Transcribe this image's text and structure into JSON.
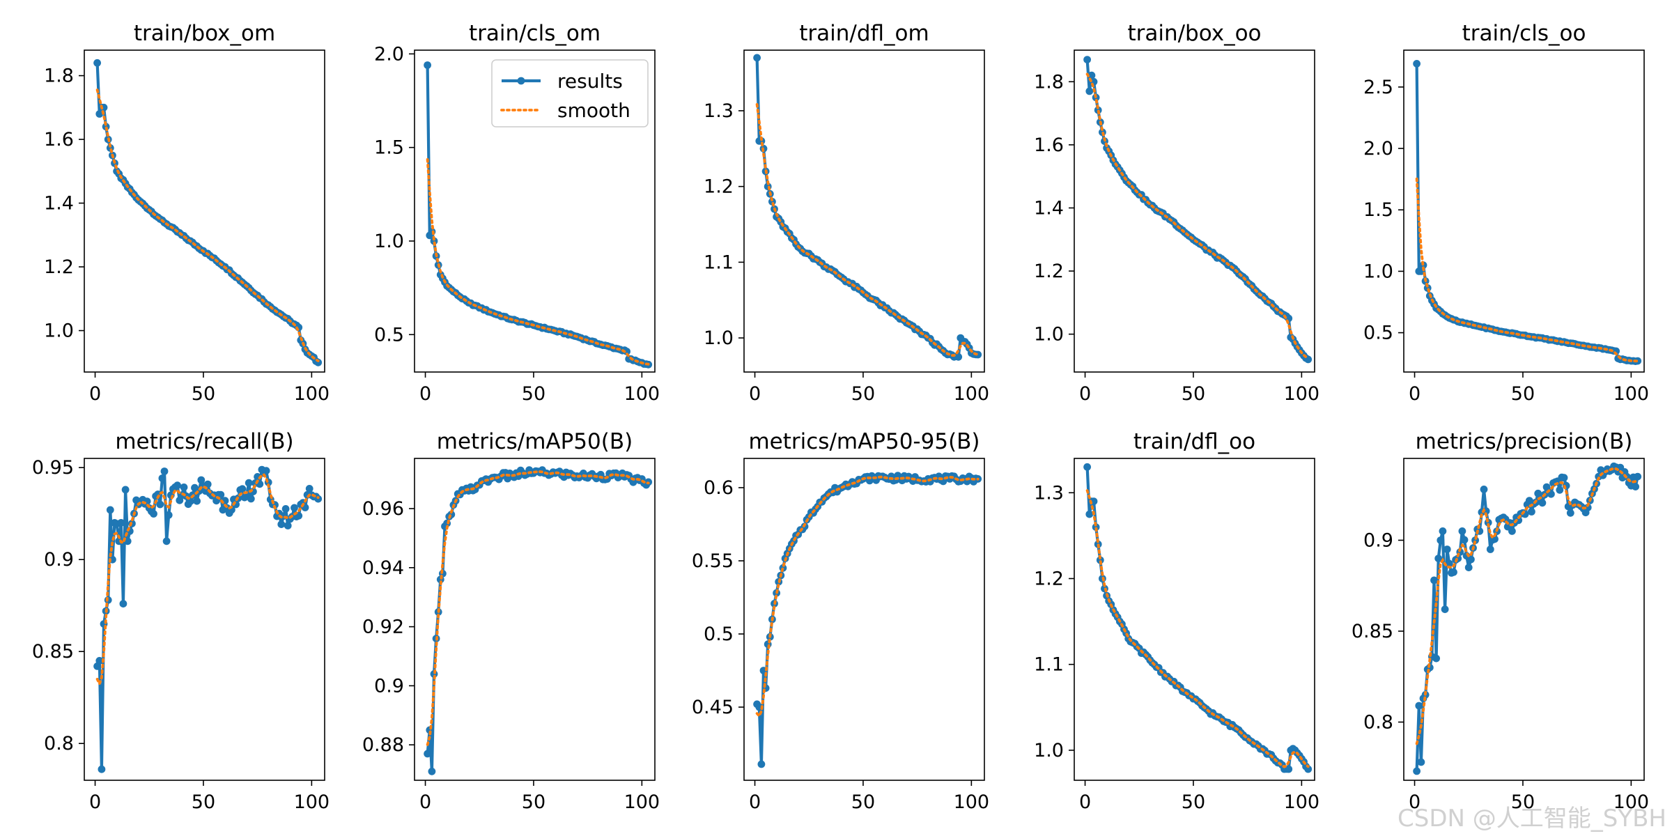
{
  "watermark": "CSDN @人工智能_SYBH",
  "legend": {
    "results_label": "results",
    "smooth_label": "smooth"
  },
  "colors": {
    "results": "#1f77b4",
    "smooth": "#ff7f0e",
    "axes": "#000000"
  },
  "chart_data": [
    {
      "type": "line",
      "title": "train/box_om",
      "legend": "none",
      "xlim": [
        -5,
        106
      ],
      "ylim": [
        0.87,
        1.88
      ],
      "xticks": [
        0,
        50,
        100
      ],
      "yticks": [
        1.0,
        1.2,
        1.4,
        1.6,
        1.8
      ],
      "x_range": [
        1,
        103
      ],
      "anchors": [
        [
          1,
          1.84
        ],
        [
          2,
          1.68
        ],
        [
          3,
          1.7
        ],
        [
          4,
          1.7
        ],
        [
          5,
          1.64
        ],
        [
          6,
          1.6
        ],
        [
          8,
          1.55
        ],
        [
          10,
          1.5
        ],
        [
          15,
          1.45
        ],
        [
          20,
          1.41
        ],
        [
          30,
          1.35
        ],
        [
          40,
          1.3
        ],
        [
          50,
          1.25
        ],
        [
          60,
          1.2
        ],
        [
          70,
          1.14
        ],
        [
          80,
          1.08
        ],
        [
          90,
          1.03
        ],
        [
          94,
          1.01
        ],
        [
          95,
          0.97
        ],
        [
          98,
          0.93
        ],
        [
          100,
          0.92
        ],
        [
          103,
          0.9
        ]
      ],
      "noise": 0.003
    },
    {
      "type": "line",
      "title": "train/cls_om",
      "legend": "upper right",
      "xlim": [
        -5,
        106
      ],
      "ylim": [
        0.3,
        2.02
      ],
      "xticks": [
        0,
        50,
        100
      ],
      "yticks": [
        0.5,
        1.0,
        1.5,
        2.0
      ],
      "x_range": [
        1,
        103
      ],
      "anchors": [
        [
          1,
          1.94
        ],
        [
          2,
          1.03
        ],
        [
          3,
          1.05
        ],
        [
          4,
          1.0
        ],
        [
          5,
          0.92
        ],
        [
          7,
          0.82
        ],
        [
          10,
          0.76
        ],
        [
          15,
          0.71
        ],
        [
          20,
          0.67
        ],
        [
          30,
          0.62
        ],
        [
          40,
          0.58
        ],
        [
          50,
          0.55
        ],
        [
          60,
          0.52
        ],
        [
          70,
          0.49
        ],
        [
          80,
          0.45
        ],
        [
          90,
          0.42
        ],
        [
          93,
          0.41
        ],
        [
          94,
          0.37
        ],
        [
          100,
          0.35
        ],
        [
          103,
          0.34
        ]
      ],
      "noise": 0.004
    },
    {
      "type": "line",
      "title": "train/dfl_om",
      "legend": "none",
      "xlim": [
        -5,
        106
      ],
      "ylim": [
        0.955,
        1.38
      ],
      "xticks": [
        0,
        50,
        100
      ],
      "yticks": [
        1.0,
        1.1,
        1.2,
        1.3
      ],
      "x_range": [
        1,
        103
      ],
      "anchors": [
        [
          1,
          1.37
        ],
        [
          2,
          1.26
        ],
        [
          3,
          1.26
        ],
        [
          4,
          1.25
        ],
        [
          5,
          1.22
        ],
        [
          6,
          1.2
        ],
        [
          8,
          1.18
        ],
        [
          10,
          1.16
        ],
        [
          15,
          1.14
        ],
        [
          20,
          1.12
        ],
        [
          30,
          1.1
        ],
        [
          40,
          1.08
        ],
        [
          50,
          1.06
        ],
        [
          60,
          1.04
        ],
        [
          70,
          1.02
        ],
        [
          80,
          1.0
        ],
        [
          88,
          0.98
        ],
        [
          92,
          0.975
        ],
        [
          94,
          0.975
        ],
        [
          95,
          1.0
        ],
        [
          97,
          0.995
        ],
        [
          100,
          0.98
        ],
        [
          103,
          0.978
        ]
      ],
      "noise": 0.002
    },
    {
      "type": "line",
      "title": "train/box_oo",
      "legend": "none",
      "xlim": [
        -5,
        106
      ],
      "ylim": [
        0.88,
        1.9
      ],
      "xticks": [
        0,
        50,
        100
      ],
      "yticks": [
        1.0,
        1.2,
        1.4,
        1.6,
        1.8
      ],
      "x_range": [
        1,
        103
      ],
      "anchors": [
        [
          1,
          1.87
        ],
        [
          2,
          1.77
        ],
        [
          3,
          1.82
        ],
        [
          4,
          1.8
        ],
        [
          5,
          1.75
        ],
        [
          6,
          1.71
        ],
        [
          8,
          1.64
        ],
        [
          10,
          1.59
        ],
        [
          15,
          1.53
        ],
        [
          20,
          1.48
        ],
        [
          30,
          1.41
        ],
        [
          40,
          1.36
        ],
        [
          50,
          1.3
        ],
        [
          60,
          1.25
        ],
        [
          70,
          1.2
        ],
        [
          80,
          1.13
        ],
        [
          90,
          1.07
        ],
        [
          94,
          1.05
        ],
        [
          95,
          0.99
        ],
        [
          98,
          0.96
        ],
        [
          100,
          0.94
        ],
        [
          103,
          0.92
        ]
      ],
      "noise": 0.004
    },
    {
      "type": "line",
      "title": "train/cls_oo",
      "legend": "none",
      "xlim": [
        -5,
        106
      ],
      "ylim": [
        0.18,
        2.8
      ],
      "xticks": [
        0,
        50,
        100
      ],
      "yticks": [
        0.5,
        1.0,
        1.5,
        2.0,
        2.5
      ],
      "x_range": [
        1,
        103
      ],
      "anchors": [
        [
          1,
          2.69
        ],
        [
          2,
          1.0
        ],
        [
          3,
          1.0
        ],
        [
          4,
          1.05
        ],
        [
          5,
          0.92
        ],
        [
          7,
          0.8
        ],
        [
          10,
          0.7
        ],
        [
          15,
          0.63
        ],
        [
          20,
          0.59
        ],
        [
          30,
          0.55
        ],
        [
          40,
          0.51
        ],
        [
          50,
          0.48
        ],
        [
          60,
          0.45
        ],
        [
          70,
          0.42
        ],
        [
          80,
          0.39
        ],
        [
          90,
          0.36
        ],
        [
          93,
          0.35
        ],
        [
          94,
          0.29
        ],
        [
          100,
          0.27
        ],
        [
          103,
          0.27
        ]
      ],
      "noise": 0.004
    },
    {
      "type": "line",
      "title": "metrics/recall(B)",
      "legend": "none",
      "xlim": [
        -5,
        106
      ],
      "ylim": [
        0.78,
        0.955
      ],
      "xticks": [
        0,
        50,
        100
      ],
      "yticks": [
        0.8,
        0.85,
        0.9,
        0.95
      ],
      "x_range": [
        1,
        103
      ],
      "anchors": [
        [
          1,
          0.842
        ],
        [
          2,
          0.845
        ],
        [
          3,
          0.786
        ],
        [
          4,
          0.865
        ],
        [
          5,
          0.872
        ],
        [
          6,
          0.878
        ],
        [
          7,
          0.927
        ],
        [
          8,
          0.9
        ],
        [
          9,
          0.92
        ],
        [
          11,
          0.91
        ],
        [
          12,
          0.92
        ],
        [
          13,
          0.876
        ],
        [
          14,
          0.938
        ],
        [
          15,
          0.91
        ],
        [
          18,
          0.925
        ],
        [
          20,
          0.93
        ],
        [
          25,
          0.928
        ],
        [
          30,
          0.93
        ],
        [
          32,
          0.948
        ],
        [
          33,
          0.91
        ],
        [
          35,
          0.935
        ],
        [
          40,
          0.935
        ],
        [
          45,
          0.935
        ],
        [
          50,
          0.94
        ],
        [
          55,
          0.935
        ],
        [
          60,
          0.932
        ],
        [
          65,
          0.93
        ],
        [
          70,
          0.935
        ],
        [
          75,
          0.945
        ],
        [
          80,
          0.942
        ],
        [
          82,
          0.93
        ],
        [
          85,
          0.925
        ],
        [
          90,
          0.922
        ],
        [
          95,
          0.93
        ],
        [
          100,
          0.935
        ],
        [
          103,
          0.933
        ]
      ],
      "noise": 0.006
    },
    {
      "type": "line",
      "title": "metrics/mAP50(B)",
      "legend": "none",
      "xlim": [
        -5,
        106
      ],
      "ylim": [
        0.868,
        0.977
      ],
      "xticks": [
        0,
        50,
        100
      ],
      "yticks": [
        0.88,
        0.9,
        0.92,
        0.94,
        0.96
      ],
      "x_range": [
        1,
        103
      ],
      "anchors": [
        [
          1,
          0.877
        ],
        [
          2,
          0.885
        ],
        [
          3,
          0.871
        ],
        [
          4,
          0.904
        ],
        [
          5,
          0.916
        ],
        [
          6,
          0.925
        ],
        [
          7,
          0.936
        ],
        [
          8,
          0.938
        ],
        [
          9,
          0.954
        ],
        [
          10,
          0.955
        ],
        [
          12,
          0.958
        ],
        [
          15,
          0.965
        ],
        [
          20,
          0.966
        ],
        [
          25,
          0.968
        ],
        [
          30,
          0.97
        ],
        [
          35,
          0.971
        ],
        [
          40,
          0.971
        ],
        [
          45,
          0.972
        ],
        [
          50,
          0.972
        ],
        [
          55,
          0.972
        ],
        [
          60,
          0.972
        ],
        [
          70,
          0.971
        ],
        [
          80,
          0.971
        ],
        [
          90,
          0.971
        ],
        [
          95,
          0.97
        ],
        [
          103,
          0.969
        ]
      ],
      "noise": 0.0012
    },
    {
      "type": "line",
      "title": "metrics/mAP50-95(B)",
      "legend": "none",
      "xlim": [
        -5,
        106
      ],
      "ylim": [
        0.4,
        0.62
      ],
      "xticks": [
        0,
        50,
        100
      ],
      "yticks": [
        0.45,
        0.5,
        0.55,
        0.6
      ],
      "x_range": [
        1,
        103
      ],
      "anchors": [
        [
          1,
          0.452
        ],
        [
          2,
          0.45
        ],
        [
          3,
          0.411
        ],
        [
          4,
          0.475
        ],
        [
          5,
          0.463
        ],
        [
          6,
          0.493
        ],
        [
          7,
          0.498
        ],
        [
          8,
          0.51
        ],
        [
          10,
          0.528
        ],
        [
          12,
          0.54
        ],
        [
          15,
          0.555
        ],
        [
          20,
          0.568
        ],
        [
          25,
          0.58
        ],
        [
          30,
          0.59
        ],
        [
          35,
          0.597
        ],
        [
          40,
          0.6
        ],
        [
          45,
          0.604
        ],
        [
          50,
          0.606
        ],
        [
          55,
          0.607
        ],
        [
          60,
          0.607
        ],
        [
          70,
          0.606
        ],
        [
          80,
          0.606
        ],
        [
          90,
          0.606
        ],
        [
          103,
          0.606
        ]
      ],
      "noise": 0.002
    },
    {
      "type": "line",
      "title": "train/dfl_oo",
      "legend": "none",
      "xlim": [
        -5,
        106
      ],
      "ylim": [
        0.965,
        1.34
      ],
      "xticks": [
        0,
        50,
        100
      ],
      "yticks": [
        1.0,
        1.1,
        1.2,
        1.3
      ],
      "x_range": [
        1,
        103
      ],
      "anchors": [
        [
          1,
          1.33
        ],
        [
          2,
          1.275
        ],
        [
          3,
          1.29
        ],
        [
          4,
          1.29
        ],
        [
          5,
          1.26
        ],
        [
          6,
          1.24
        ],
        [
          8,
          1.2
        ],
        [
          10,
          1.18
        ],
        [
          15,
          1.155
        ],
        [
          20,
          1.13
        ],
        [
          30,
          1.105
        ],
        [
          40,
          1.08
        ],
        [
          50,
          1.06
        ],
        [
          60,
          1.04
        ],
        [
          70,
          1.025
        ],
        [
          80,
          1.005
        ],
        [
          90,
          0.985
        ],
        [
          92,
          0.978
        ],
        [
          94,
          0.978
        ],
        [
          95,
          1.0
        ],
        [
          97,
          1.0
        ],
        [
          100,
          0.99
        ],
        [
          103,
          0.978
        ]
      ],
      "noise": 0.002
    },
    {
      "type": "line",
      "title": "metrics/precision(B)",
      "legend": "none",
      "xlim": [
        -5,
        106
      ],
      "ylim": [
        0.768,
        0.945
      ],
      "xticks": [
        0,
        50,
        100
      ],
      "yticks": [
        0.8,
        0.85,
        0.9
      ],
      "x_range": [
        1,
        103
      ],
      "anchors": [
        [
          1,
          0.773
        ],
        [
          2,
          0.809
        ],
        [
          3,
          0.778
        ],
        [
          4,
          0.813
        ],
        [
          5,
          0.815
        ],
        [
          6,
          0.829
        ],
        [
          7,
          0.83
        ],
        [
          8,
          0.836
        ],
        [
          9,
          0.878
        ],
        [
          10,
          0.835
        ],
        [
          11,
          0.89
        ],
        [
          12,
          0.9
        ],
        [
          13,
          0.905
        ],
        [
          14,
          0.862
        ],
        [
          15,
          0.895
        ],
        [
          17,
          0.882
        ],
        [
          20,
          0.89
        ],
        [
          22,
          0.905
        ],
        [
          25,
          0.885
        ],
        [
          28,
          0.9
        ],
        [
          30,
          0.905
        ],
        [
          32,
          0.928
        ],
        [
          35,
          0.895
        ],
        [
          40,
          0.912
        ],
        [
          45,
          0.905
        ],
        [
          50,
          0.915
        ],
        [
          55,
          0.92
        ],
        [
          60,
          0.925
        ],
        [
          65,
          0.932
        ],
        [
          70,
          0.93
        ],
        [
          72,
          0.915
        ],
        [
          75,
          0.92
        ],
        [
          80,
          0.918
        ],
        [
          85,
          0.935
        ],
        [
          90,
          0.938
        ],
        [
          95,
          0.94
        ],
        [
          98,
          0.935
        ],
        [
          100,
          0.93
        ],
        [
          103,
          0.935
        ]
      ],
      "noise": 0.004
    }
  ]
}
